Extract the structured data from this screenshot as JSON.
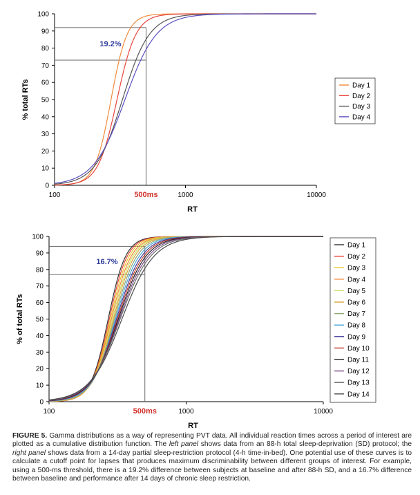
{
  "chart_data": [
    {
      "type": "line",
      "panel": "left",
      "xscale": "log",
      "xlim": [
        100,
        10000
      ],
      "ylim": [
        0,
        100
      ],
      "xticks": [
        "100",
        "1000",
        "10000"
      ],
      "yticks": [
        "0",
        "10",
        "20",
        "30",
        "40",
        "50",
        "60",
        "70",
        "80",
        "90",
        "100"
      ],
      "xlabel": "RT",
      "ylabel": "% total RTs",
      "threshold_label": "500ms",
      "threshold_x": 500,
      "reference_levels": [
        92,
        73
      ],
      "annotation": "19.2%",
      "legend_position": "right",
      "series": [
        {
          "name": "Day 1",
          "color": "#f08a3a",
          "median": 270,
          "shape": 7.0
        },
        {
          "name": "Day 2",
          "color": "#e8453c",
          "median": 300,
          "shape": 6.0
        },
        {
          "name": "Day 3",
          "color": "#555555",
          "median": 330,
          "shape": 4.2
        },
        {
          "name": "Day 4",
          "color": "#5a4fc0",
          "median": 345,
          "shape": 3.6
        }
      ]
    },
    {
      "type": "line",
      "panel": "right",
      "xscale": "log",
      "xlim": [
        100,
        10000
      ],
      "ylim": [
        0,
        100
      ],
      "xticks": [
        "100",
        "1000",
        "10000"
      ],
      "yticks": [
        "0",
        "10",
        "20",
        "30",
        "40",
        "50",
        "60",
        "70",
        "80",
        "90",
        "100"
      ],
      "xlabel": "RT",
      "ylabel": "% of total RTs",
      "threshold_label": "500ms",
      "threshold_x": 500,
      "reference_levels": [
        94,
        77
      ],
      "annotation": "16.7%",
      "legend_position": "right",
      "series": [
        {
          "name": "Day 1",
          "color": "#333333",
          "median": 270,
          "shape": 6.8
        },
        {
          "name": "Day 2",
          "color": "#e8453c",
          "median": 275,
          "shape": 6.6
        },
        {
          "name": "Day 3",
          "color": "#e6c82a",
          "median": 280,
          "shape": 6.3
        },
        {
          "name": "Day 4",
          "color": "#f08a3a",
          "median": 285,
          "shape": 6.0
        },
        {
          "name": "Day 5",
          "color": "#cfe06a",
          "median": 290,
          "shape": 5.8
        },
        {
          "name": "Day 6",
          "color": "#d9a83a",
          "median": 295,
          "shape": 5.6
        },
        {
          "name": "Day 7",
          "color": "#8fa67a",
          "median": 300,
          "shape": 5.3
        },
        {
          "name": "Day 8",
          "color": "#4aa8d8",
          "median": 305,
          "shape": 5.0
        },
        {
          "name": "Day 9",
          "color": "#3f3b9a",
          "median": 310,
          "shape": 4.7
        },
        {
          "name": "Day 10",
          "color": "#c0392b",
          "median": 315,
          "shape": 4.5
        },
        {
          "name": "Day 11",
          "color": "#222222",
          "median": 320,
          "shape": 4.3
        },
        {
          "name": "Day 12",
          "color": "#7a4a8a",
          "median": 325,
          "shape": 4.1
        },
        {
          "name": "Day 13",
          "color": "#6b6b6b",
          "median": 330,
          "shape": 3.9
        },
        {
          "name": "Day 14",
          "color": "#4a4a4a",
          "median": 340,
          "shape": 3.7
        }
      ]
    }
  ],
  "caption": {
    "figure_label": "FIGURE 5.",
    "part1": " Gamma distributions as a way of representing PVT data. All individual reaction times across a period of interest are plotted as a cumulative distribution function. The ",
    "left_panel": "left panel",
    "part2": " shows data from an 88-h total sleep-deprivation (SD) protocol; the ",
    "right_panel": "right panel",
    "part3": " shows data from a 14-day partial sleep-restriction protocol (4-h time-in-bed). One potential use of these curves is to calculate a cutoff point for lapses that produces maximum discriminability between different groups of interest. For example, using a 500-ms threshold, there is a 19.2% difference between subjects at baseline and after 88-h SD, and a 16.7% difference between baseline and performance after 14 days of chronic sleep restriction."
  }
}
